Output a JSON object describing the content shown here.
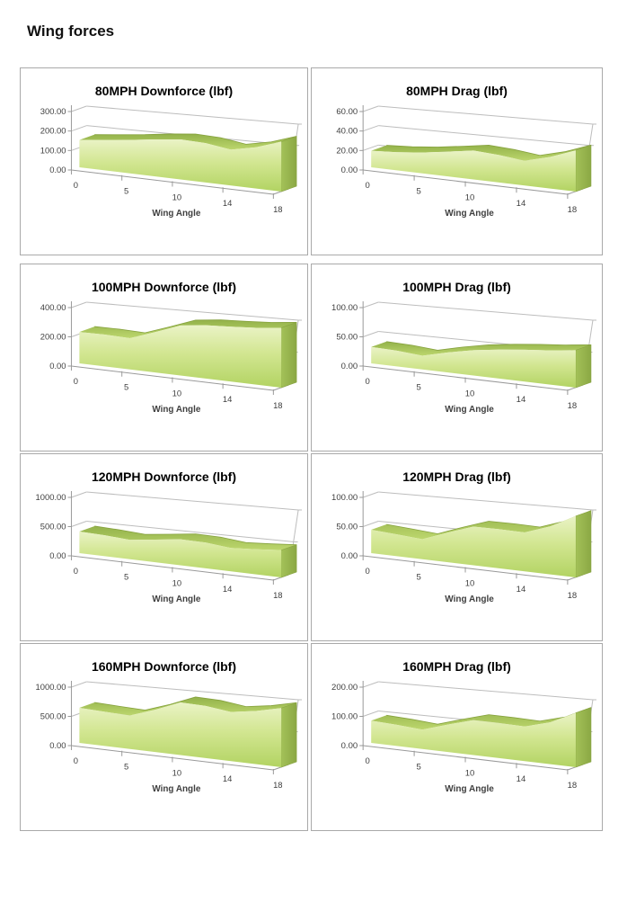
{
  "page": {
    "title": "Wing forces"
  },
  "axis_common": {
    "xlabel": "Wing Angle",
    "x_tick_labels": [
      "0",
      "5",
      "10",
      "14",
      "18"
    ],
    "categories": [
      0,
      2,
      5,
      8,
      10,
      12,
      14,
      16,
      18
    ]
  },
  "colors": {
    "area_face_top": "#eaf3c6",
    "area_face_mid": "#d2e691",
    "area_face_bottom": "#b2d362",
    "area_top_band_dark": "#93b24a",
    "area_top_band_light": "#bcd66d",
    "area_end_cap_dark": "#8ba844",
    "area_end_cap_light": "#a3c158",
    "area_edge": "#86a23e",
    "gridline": "#bdbdbd",
    "axis_line": "#9a9a9a",
    "tick_text": "#3f3f3f",
    "chart_border": "#a9a9a9",
    "title_text": "#000000"
  },
  "chart_data": [
    {
      "type": "area",
      "title": "80MPH Downforce (lbf)",
      "xlabel": "Wing Angle",
      "x": [
        0,
        2,
        5,
        8,
        10,
        12,
        14,
        16,
        18
      ],
      "x_tick_labels": [
        "0",
        "5",
        "10",
        "14",
        "18"
      ],
      "y_tick_labels": [
        "0.00",
        "100.00",
        "200.00",
        "300.00"
      ],
      "ylim": [
        0,
        300
      ],
      "values": [
        140,
        150,
        160,
        172,
        180,
        172,
        152,
        170,
        200
      ],
      "grid": true,
      "legend": "none"
    },
    {
      "type": "area",
      "title": "80MPH Drag (lbf)",
      "xlabel": "Wing Angle",
      "x": [
        0,
        2,
        5,
        8,
        10,
        12,
        14,
        16,
        18
      ],
      "x_tick_labels": [
        "0",
        "5",
        "10",
        "14",
        "18"
      ],
      "y_tick_labels": [
        "0.00",
        "20.00",
        "40.00",
        "60.00"
      ],
      "ylim": [
        0,
        60
      ],
      "values": [
        17,
        18,
        20,
        23,
        26,
        24,
        21,
        26,
        33
      ],
      "grid": true,
      "legend": "none"
    },
    {
      "type": "area",
      "title": "100MPH Downforce (lbf)",
      "xlabel": "Wing Angle",
      "x": [
        0,
        2,
        5,
        8,
        10,
        12,
        14,
        16,
        18
      ],
      "x_tick_labels": [
        "0",
        "5",
        "10",
        "14",
        "18"
      ],
      "y_tick_labels": [
        "0.00",
        "200.00",
        "400.00"
      ],
      "ylim": [
        0,
        400
      ],
      "values": [
        215,
        210,
        200,
        250,
        300,
        310,
        310,
        312,
        320
      ],
      "grid": true,
      "legend": "none"
    },
    {
      "type": "area",
      "title": "100MPH Drag (lbf)",
      "xlabel": "Wing Angle",
      "x": [
        0,
        2,
        5,
        8,
        10,
        12,
        14,
        16,
        18
      ],
      "x_tick_labels": [
        "0",
        "5",
        "10",
        "14",
        "18"
      ],
      "y_tick_labels": [
        "0.00",
        "50.00",
        "100.00"
      ],
      "ylim": [
        0,
        100
      ],
      "values": [
        28,
        26,
        22,
        31,
        38,
        42,
        45,
        47,
        50
      ],
      "grid": true,
      "legend": "none"
    },
    {
      "type": "area",
      "title": "120MPH Downforce (lbf)",
      "xlabel": "Wing Angle",
      "x": [
        0,
        2,
        5,
        8,
        10,
        12,
        14,
        16,
        18
      ],
      "x_tick_labels": [
        "0",
        "5",
        "10",
        "14",
        "18"
      ],
      "y_tick_labels": [
        "0.00",
        "500.00",
        "1000.00"
      ],
      "ylim": [
        0,
        1000
      ],
      "values": [
        370,
        345,
        310,
        350,
        390,
        375,
        330,
        345,
        365
      ],
      "grid": true,
      "legend": "none"
    },
    {
      "type": "area",
      "title": "120MPH Drag (lbf)",
      "xlabel": "Wing Angle",
      "x": [
        0,
        2,
        5,
        8,
        10,
        12,
        14,
        16,
        18
      ],
      "x_tick_labels": [
        "0",
        "5",
        "10",
        "14",
        "18"
      ],
      "y_tick_labels": [
        "0.00",
        "50.00",
        "100.00"
      ],
      "ylim": [
        0,
        100
      ],
      "values": [
        40,
        36,
        32,
        46,
        58,
        57,
        55,
        66,
        82
      ],
      "grid": true,
      "legend": "none"
    },
    {
      "type": "area",
      "title": "160MPH Downforce (lbf)",
      "xlabel": "Wing Angle",
      "x": [
        0,
        2,
        5,
        8,
        10,
        12,
        14,
        16,
        18
      ],
      "x_tick_labels": [
        "0",
        "5",
        "10",
        "14",
        "18"
      ],
      "y_tick_labels": [
        "0.00",
        "500.00",
        "1000.00"
      ],
      "ylim": [
        0,
        1000
      ],
      "values": [
        600,
        565,
        535,
        655,
        790,
        760,
        695,
        730,
        790
      ],
      "grid": true,
      "legend": "none"
    },
    {
      "type": "area",
      "title": "160MPH Drag (lbf)",
      "xlabel": "Wing Angle",
      "x": [
        0,
        2,
        5,
        8,
        10,
        12,
        14,
        16,
        18
      ],
      "x_tick_labels": [
        "0",
        "5",
        "10",
        "14",
        "18"
      ],
      "y_tick_labels": [
        "0.00",
        "100.00",
        "200.00"
      ],
      "ylim": [
        0,
        200
      ],
      "values": [
        76,
        70,
        62,
        85,
        105,
        102,
        98,
        115,
        145
      ],
      "grid": true,
      "legend": "none"
    }
  ]
}
